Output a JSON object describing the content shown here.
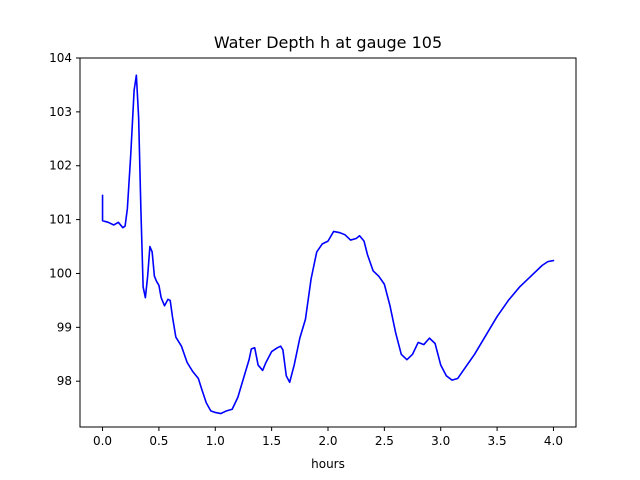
{
  "chart_data": {
    "type": "line",
    "title": "Water Depth h at gauge 105",
    "xlabel": "hours",
    "ylabel": "",
    "xlim": [
      -0.2,
      4.2
    ],
    "ylim": [
      97.15,
      104.0
    ],
    "xticks": [
      0.0,
      0.5,
      1.0,
      1.5,
      2.0,
      2.5,
      3.0,
      3.5,
      4.0
    ],
    "xtick_labels": [
      "0.0",
      "0.5",
      "1.0",
      "1.5",
      "2.0",
      "2.5",
      "3.0",
      "3.5",
      "4.0"
    ],
    "yticks": [
      98,
      99,
      100,
      101,
      102,
      103,
      104
    ],
    "ytick_labels": [
      "98",
      "99",
      "100",
      "101",
      "102",
      "103",
      "104"
    ],
    "grid": false,
    "series": [
      {
        "color": "#0000ff",
        "x": [
          0.0,
          0.0,
          0.05,
          0.1,
          0.14,
          0.18,
          0.2,
          0.22,
          0.25,
          0.28,
          0.3,
          0.32,
          0.34,
          0.36,
          0.38,
          0.4,
          0.42,
          0.44,
          0.46,
          0.48,
          0.5,
          0.52,
          0.55,
          0.58,
          0.6,
          0.62,
          0.65,
          0.7,
          0.75,
          0.8,
          0.85,
          0.88,
          0.92,
          0.96,
          1.0,
          1.05,
          1.1,
          1.15,
          1.2,
          1.25,
          1.3,
          1.32,
          1.35,
          1.38,
          1.42,
          1.45,
          1.5,
          1.55,
          1.58,
          1.6,
          1.63,
          1.66,
          1.7,
          1.75,
          1.8,
          1.85,
          1.9,
          1.95,
          2.0,
          2.05,
          2.1,
          2.15,
          2.2,
          2.25,
          2.28,
          2.32,
          2.35,
          2.4,
          2.45,
          2.5,
          2.55,
          2.6,
          2.65,
          2.7,
          2.75,
          2.8,
          2.85,
          2.9,
          2.95,
          3.0,
          3.05,
          3.1,
          3.15,
          3.2,
          3.25,
          3.3,
          3.4,
          3.5,
          3.6,
          3.7,
          3.8,
          3.9,
          3.95,
          4.0
        ],
        "y": [
          101.45,
          100.98,
          100.95,
          100.9,
          100.95,
          100.85,
          100.88,
          101.2,
          102.2,
          103.4,
          103.68,
          102.9,
          101.2,
          99.75,
          99.55,
          99.95,
          100.5,
          100.4,
          99.95,
          99.85,
          99.78,
          99.55,
          99.4,
          99.52,
          99.5,
          99.2,
          98.82,
          98.65,
          98.35,
          98.18,
          98.05,
          97.85,
          97.6,
          97.45,
          97.42,
          97.4,
          97.45,
          97.48,
          97.7,
          98.05,
          98.4,
          98.6,
          98.62,
          98.3,
          98.2,
          98.35,
          98.55,
          98.62,
          98.65,
          98.58,
          98.1,
          97.98,
          98.3,
          98.8,
          99.15,
          99.9,
          100.4,
          100.55,
          100.6,
          100.78,
          100.76,
          100.72,
          100.62,
          100.65,
          100.7,
          100.6,
          100.35,
          100.05,
          99.95,
          99.8,
          99.4,
          98.9,
          98.5,
          98.4,
          98.5,
          98.72,
          98.68,
          98.8,
          98.7,
          98.3,
          98.1,
          98.02,
          98.05,
          98.2,
          98.35,
          98.5,
          98.85,
          99.2,
          99.5,
          99.75,
          99.95,
          100.15,
          100.22,
          100.24
        ]
      }
    ]
  }
}
